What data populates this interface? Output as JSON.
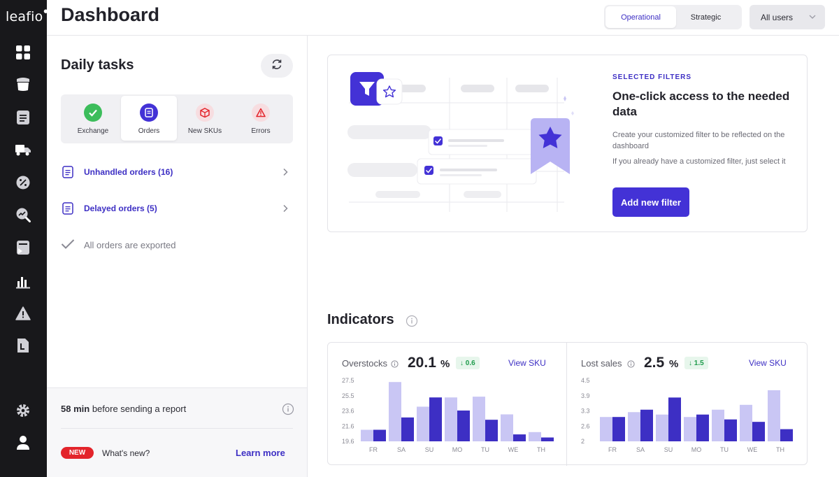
{
  "app": {
    "logo": "leafio"
  },
  "header": {
    "title": "Dashboard",
    "tabs": [
      {
        "label": "Operational",
        "active": true
      },
      {
        "label": "Strategic",
        "active": false
      }
    ],
    "user_filter": "All users"
  },
  "rail": {
    "items": [
      {
        "icon": "dashboard-grid-icon"
      },
      {
        "icon": "store-icon"
      },
      {
        "icon": "orders-doc-icon"
      },
      {
        "icon": "delivery-truck-icon"
      },
      {
        "icon": "promo-percent-icon"
      },
      {
        "icon": "analytics-search-icon"
      },
      {
        "icon": "presentation-icon"
      },
      {
        "icon": "bar-chart-icon"
      },
      {
        "icon": "warning-icon"
      },
      {
        "icon": "reports-doc-icon"
      },
      {
        "icon": "settings-gear-icon"
      },
      {
        "icon": "user-profile-icon"
      }
    ]
  },
  "daily_tasks": {
    "title": "Daily tasks",
    "tabs": [
      {
        "label": "Exchange",
        "icon": "check-circle-icon",
        "active": false
      },
      {
        "label": "Orders",
        "icon": "document-icon",
        "active": true
      },
      {
        "label": "New SKUs",
        "icon": "box-icon",
        "active": false
      },
      {
        "label": "Errors",
        "icon": "warning-triangle-icon",
        "active": false
      }
    ],
    "rows": [
      {
        "label": "Unhandled orders (16)"
      },
      {
        "label": "Delayed orders (5)"
      }
    ],
    "exported": "All orders are exported",
    "report": {
      "time": "58 min",
      "text": "before sending a report"
    },
    "news": {
      "badge": "NEW",
      "text": "What's new?",
      "link": "Learn more"
    }
  },
  "filters": {
    "eyebrow": "SELECTED FILTERS",
    "title": "One-click access to the needed data",
    "desc1": "Create your customized filter to be reflected on the dashboard",
    "desc2": "If you already have a customized filter, just select it",
    "button": "Add new filter"
  },
  "indicators": {
    "title": "Indicators",
    "metrics": [
      {
        "label": "Overstocks",
        "value": "20.1",
        "unit": "%",
        "delta": "↓ 0.6",
        "link": "View SKU",
        "chart_data": {
          "type": "bar",
          "categories": [
            "FR",
            "SA",
            "SU",
            "MO",
            "TU",
            "WE",
            "TH"
          ],
          "yticks": [
            "27.5",
            "25.5",
            "23.6",
            "21.6",
            "19.6"
          ],
          "ylim": [
            19.6,
            27.5
          ],
          "series": [
            {
              "values": [
                21.1,
                27.3,
                24.1,
                25.3,
                25.4,
                23.1,
                20.8
              ]
            },
            {
              "values": [
                21.1,
                22.7,
                25.3,
                23.6,
                22.4,
                20.5,
                20.1
              ]
            }
          ],
          "colors": [
            "#c9c6f4",
            "#3d2fc4"
          ]
        }
      },
      {
        "label": "Lost sales",
        "value": "2.5",
        "unit": "%",
        "delta": "↓ 1.5",
        "link": "View SKU",
        "chart_data": {
          "type": "bar",
          "categories": [
            "FR",
            "SA",
            "SU",
            "MO",
            "TU",
            "WE",
            "TH"
          ],
          "yticks": [
            "4.5",
            "3.9",
            "3.3",
            "2.6",
            "2"
          ],
          "ylim": [
            2.0,
            4.5
          ],
          "series": [
            {
              "values": [
                3.0,
                3.2,
                3.1,
                3.0,
                3.3,
                3.5,
                4.1
              ]
            },
            {
              "values": [
                3.0,
                3.3,
                3.8,
                3.1,
                2.9,
                2.8,
                2.5
              ]
            }
          ],
          "colors": [
            "#c9c6f4",
            "#3d2fc4"
          ]
        }
      }
    ]
  }
}
